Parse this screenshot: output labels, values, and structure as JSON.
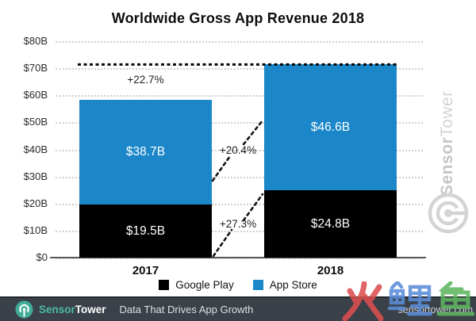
{
  "title": "Worldwide Gross App Revenue 2018",
  "chart_data": {
    "type": "bar",
    "stacked": true,
    "title": "Worldwide Gross App Revenue 2018",
    "categories": [
      "2017",
      "2018"
    ],
    "series": [
      {
        "name": "Google Play",
        "color": "#000000",
        "values": [
          19.5,
          24.8
        ],
        "value_labels": [
          "$19.5B",
          "$24.8B"
        ]
      },
      {
        "name": "App Store",
        "color": "#1b87c9",
        "values": [
          38.7,
          46.6
        ],
        "value_labels": [
          "$38.7B",
          "$46.6B"
        ]
      }
    ],
    "totals": [
      58.2,
      71.4
    ],
    "y_ticks": [
      {
        "label": "$80B",
        "value": 80
      },
      {
        "label": "$70B",
        "value": 70
      },
      {
        "label": "$60B",
        "value": 60
      },
      {
        "label": "$50B",
        "value": 50
      },
      {
        "label": "$40B",
        "value": 40
      },
      {
        "label": "$30B",
        "value": 30
      },
      {
        "label": "$20B",
        "value": 20
      },
      {
        "label": "$10B",
        "value": 10
      },
      {
        "label": "$0",
        "value": 0
      }
    ],
    "ylim": [
      0,
      80
    ],
    "grid": "dotted horizontal",
    "reference_line": {
      "value": 71.4,
      "style": "bold black dashed"
    },
    "annotations": [
      {
        "text": "+22.7%",
        "meaning": "total revenue growth 2017 to 2018"
      },
      {
        "text": "+20.4%",
        "meaning": "App Store segment growth"
      },
      {
        "text": "+27.3%",
        "meaning": "Google Play segment growth"
      }
    ],
    "legend_position": "bottom"
  },
  "legend": {
    "items": [
      {
        "label": "Google Play",
        "color": "#000000"
      },
      {
        "label": "App Store",
        "color": "#1b87c9"
      }
    ]
  },
  "side_watermark": {
    "brand_bold": "Sensor",
    "brand_light": "Tower"
  },
  "footer": {
    "brand_teal": "Sensor",
    "brand_white": "Tower",
    "tagline": "Data That Drives App Growth",
    "site": "sensortower.com",
    "bg_color": "#3a4149",
    "teal_color": "#45b29d"
  },
  "overlay_watermark": {
    "text": "火鲤鱼",
    "char_colors": [
      "#dd4f4f",
      "#5b8dd9",
      "#5fb760"
    ]
  }
}
